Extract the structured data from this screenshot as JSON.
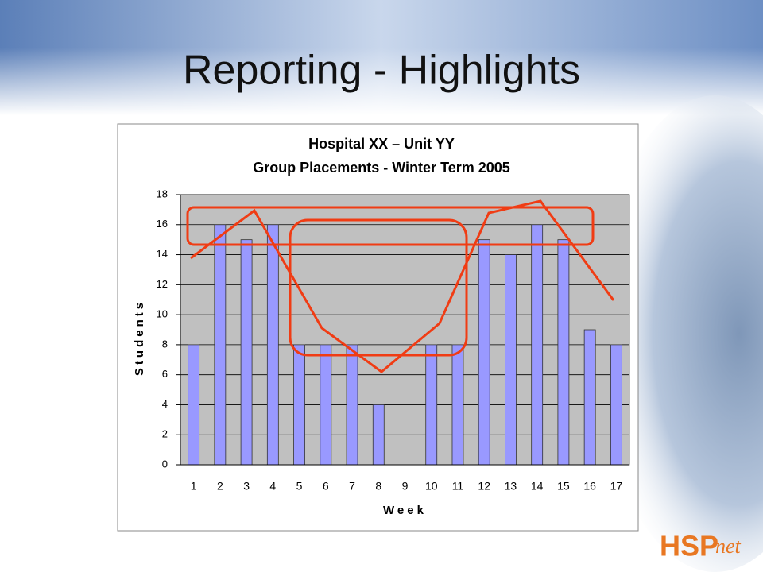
{
  "slide_title": "Reporting - Highlights",
  "logo": {
    "main": "HSP",
    "suffix": "net"
  },
  "chart_data": {
    "type": "bar",
    "title": [
      "Hospital XX – Unit YY",
      "Group Placements - Winter Term 2005"
    ],
    "x_label": "Week",
    "y_label": "Students",
    "categories": [
      "1",
      "2",
      "3",
      "4",
      "5",
      "6",
      "7",
      "8",
      "9",
      "10",
      "11",
      "12",
      "13",
      "14",
      "15",
      "16",
      "17"
    ],
    "values": [
      8,
      16,
      15,
      16,
      8,
      8,
      8,
      4,
      0,
      8,
      8,
      15,
      14,
      16,
      15,
      9,
      8
    ],
    "color": "#9999ff",
    "ylim": [
      0,
      18
    ],
    "yticks": [
      0,
      2,
      4,
      6,
      8,
      10,
      12,
      14,
      16,
      18
    ],
    "grid": true
  }
}
